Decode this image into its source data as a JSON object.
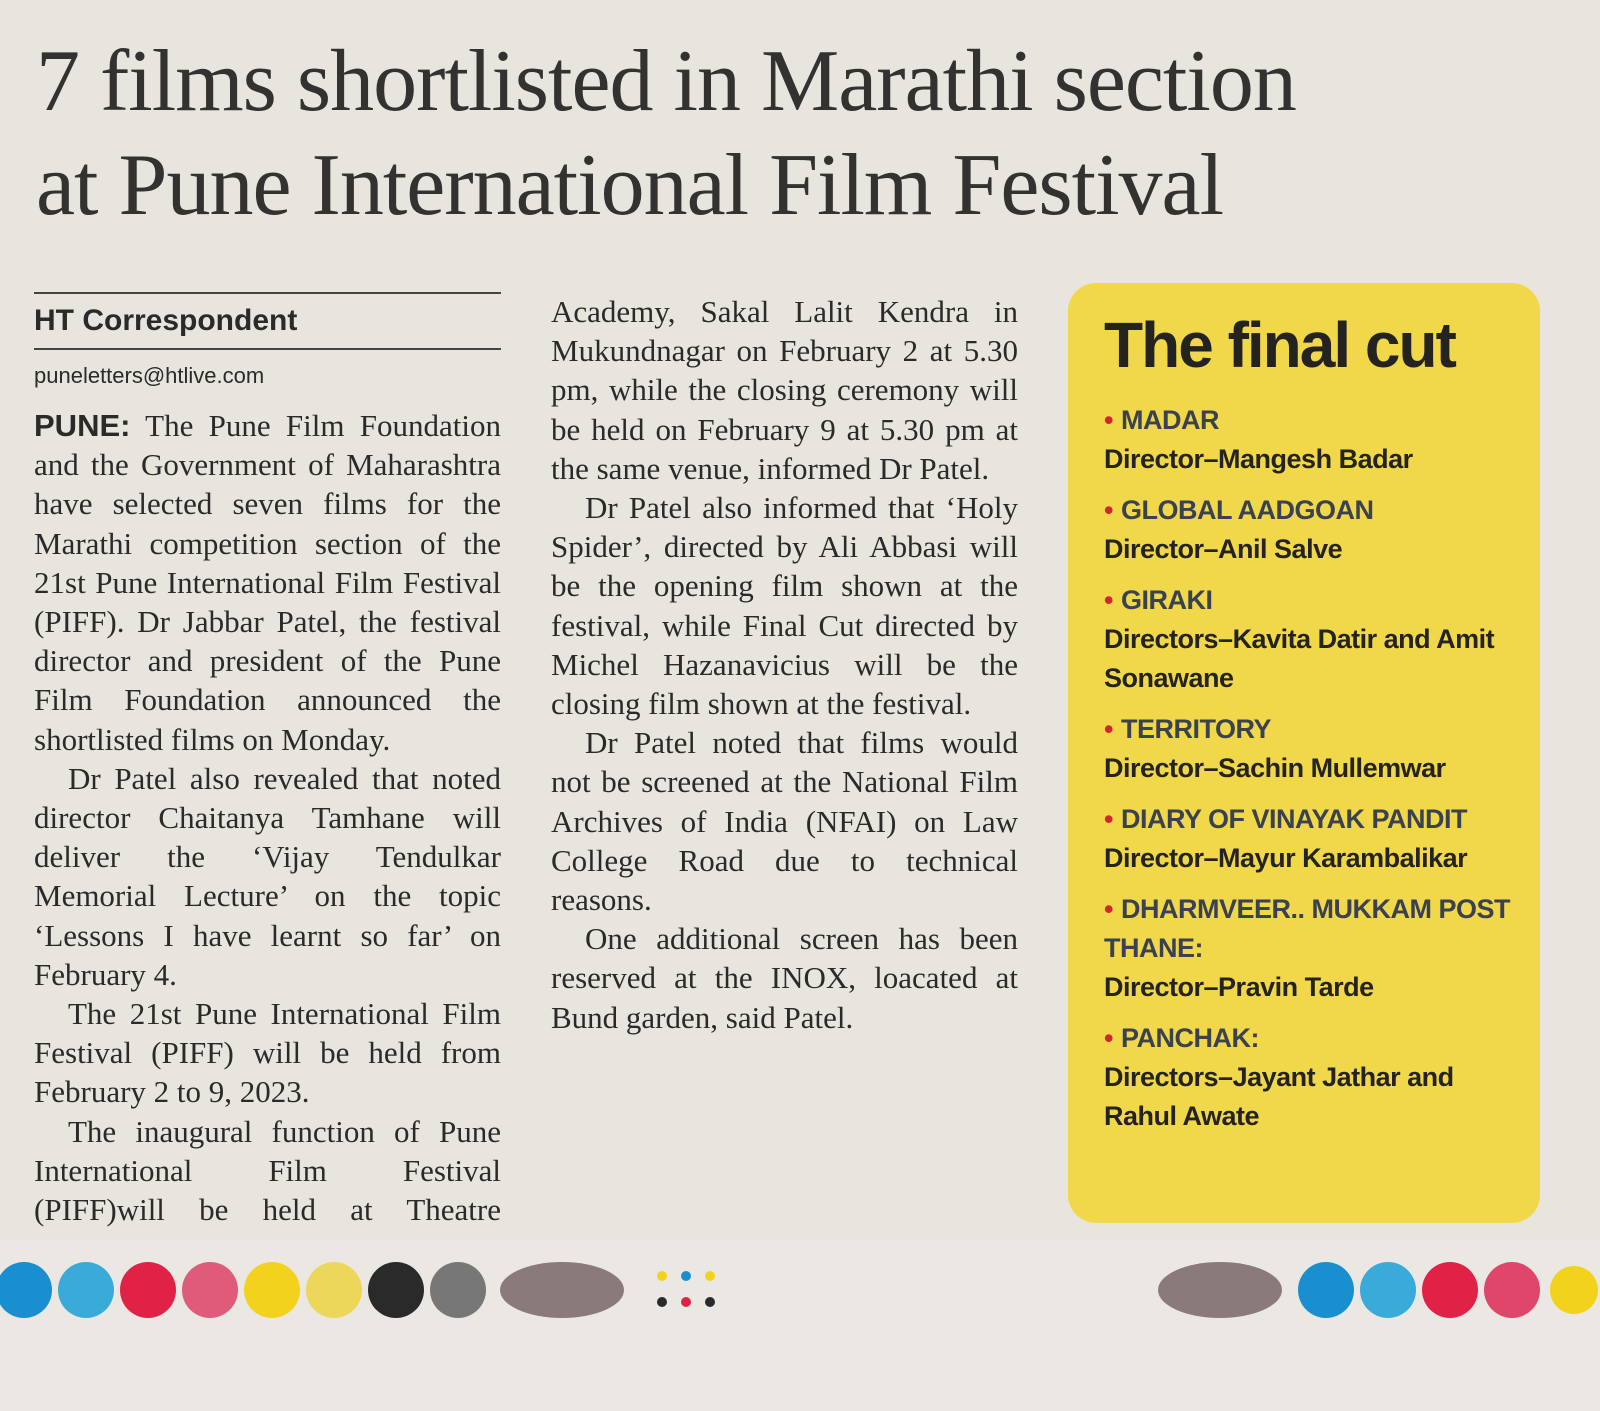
{
  "headline": [
    "7 films shortlisted in Marathi section",
    "at Pune International Film Festival"
  ],
  "byline": {
    "author": "HT Correspondent",
    "email": "puneletters@htlive.com"
  },
  "body": {
    "dateline": "PUNE:",
    "paragraphs": [
      "The Pune Film Foundation and the Government of Maharashtra have selected seven films for the Marathi competition section of the 21st Pune International Film Festival (PIFF). Dr Jabbar Patel, the festival director and president of the Pune Film Foundation announced the shortlisted films on Monday.",
      "Dr Patel also revealed that noted director Chaitanya Tamhane will deliver the ‘Vijay Tendulkar Memorial Lecture’ on the topic ‘Lessons I have learnt so far’ on February 4.",
      "The 21st Pune International Film Festival (PIFF) will be held from February 2 to 9, 2023.",
      "The inaugural function of Pune International Film Festival (PIFF)will be held at Theatre Academy, Sakal Lalit Kendra in Mukundnagar on February 2 at 5.30 pm, while the closing ceremony will be held on February 9 at 5.30 pm at the same venue, informed Dr Patel.",
      "Dr Patel also informed that ‘Holy Spider’, directed by Ali Abbasi will be the opening film shown at the festival, while Final Cut directed by Michel Hazanavicius will be the closing film shown at the festival.",
      "Dr Patel noted that films would not be screened at the National Film Archives of India (NFAI) on Law College Road due to technical reasons.",
      "One additional screen has been reserved at the INOX, loacated at Bund garden, said Patel."
    ]
  },
  "sidebar": {
    "title": "The final cut",
    "films": [
      {
        "title": "MADAR",
        "director": "Director–Mangesh Badar"
      },
      {
        "title": "GLOBAL AADGOAN",
        "director": "Director–Anil Salve"
      },
      {
        "title": "GIRAKI",
        "director": "Directors–Kavita Datir and Amit Sonawane"
      },
      {
        "title": "TERRITORY",
        "director": "Director–Sachin Mullemwar"
      },
      {
        "title": "DIARY OF VINAYAK PANDIT",
        "director": "Director–Mayur Karambalikar"
      },
      {
        "title": "DHARMVEER.. MUKKAM POST THANE:",
        "director": "Director–Pravin Tarde"
      },
      {
        "title": "PANCHAK:",
        "director": "Directors–Jayant Jathar and Rahul Awate"
      }
    ]
  }
}
